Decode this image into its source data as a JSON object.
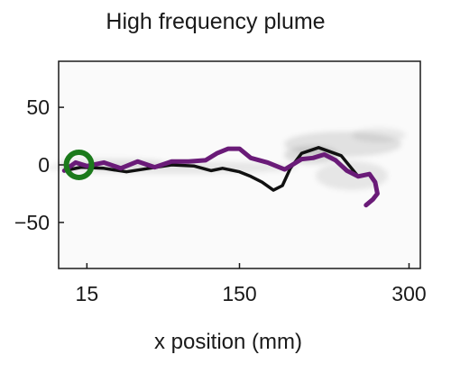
{
  "chart_data": {
    "type": "line",
    "title": "High frequency plume",
    "xlabel": "x position (mm)",
    "ylabel": "",
    "xlim": [
      -10,
      310
    ],
    "ylim": [
      -90,
      90
    ],
    "xticks": [
      15,
      150,
      300
    ],
    "yticks": [
      50,
      0,
      -50
    ],
    "grid": false,
    "legend": "none",
    "series": [
      {
        "color": "#6a1b78",
        "x": [
          -5,
          5,
          15,
          30,
          45,
          60,
          75,
          90,
          105,
          120,
          130,
          140,
          150,
          160,
          175,
          190,
          205,
          215,
          225,
          235,
          245,
          255,
          265,
          270,
          272,
          268,
          262
        ],
        "y": [
          -5,
          2,
          -1,
          2,
          -3,
          3,
          -2,
          3,
          3,
          4,
          10,
          14,
          14,
          6,
          2,
          -4,
          5,
          6,
          9,
          4,
          -5,
          -10,
          -8,
          -15,
          -25,
          -30,
          -35
        ]
      },
      {
        "color": "#111111",
        "x": [
          -5,
          10,
          30,
          50,
          70,
          90,
          110,
          125,
          135,
          150,
          160,
          170,
          180,
          188,
          195,
          205,
          220,
          240,
          255
        ],
        "y": [
          -5,
          -2,
          -3,
          -6,
          -3,
          0,
          -1,
          -5,
          -3,
          -6,
          -10,
          -15,
          -22,
          -18,
          -3,
          10,
          15,
          8,
          -10
        ]
      }
    ],
    "markers": [
      {
        "shape": "circle",
        "x": 8,
        "y": 0,
        "color": "#1b7a1b"
      }
    ]
  }
}
